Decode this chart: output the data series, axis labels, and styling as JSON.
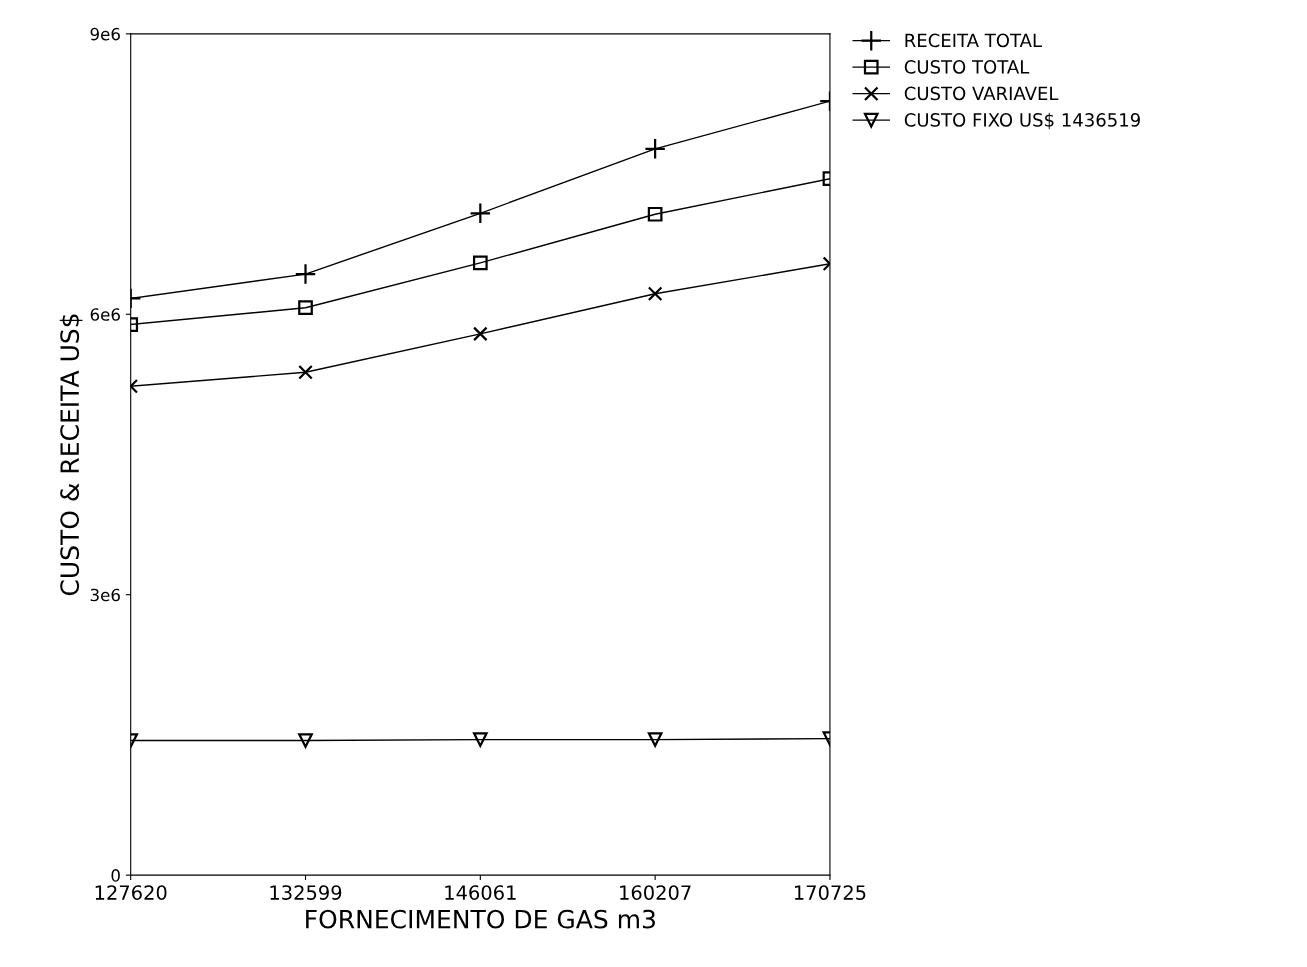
{
  "chart_data": {
    "type": "line",
    "xlabel": "FORNECIMENTO DE GAS m3",
    "ylabel": "CUSTO & RECEITA US$",
    "categories": [
      "127620",
      "132599",
      "146061",
      "160207",
      "170725"
    ],
    "series": [
      {
        "name": "RECEITA TOTAL",
        "color": "#000000",
        "marker": "plus",
        "values": [
          6170000,
          6430000,
          7080000,
          7770000,
          8280000
        ]
      },
      {
        "name": "CUSTO TOTAL",
        "color": "#000000",
        "marker": "square",
        "values": [
          5890000,
          6070000,
          6550000,
          7070000,
          7450000
        ]
      },
      {
        "name": "CUSTO VARIAVEL",
        "color": "#000000",
        "marker": "cross",
        "values": [
          5230000,
          5380000,
          5790000,
          6220000,
          6540000
        ]
      },
      {
        "name": "CUSTO FIXO US$ 1436519",
        "color": "#000000",
        "marker": "triangle",
        "values": [
          1440000,
          1440000,
          1450000,
          1450000,
          1460000
        ]
      }
    ],
    "ylim": [
      0,
      9000000
    ],
    "yticks": [
      {
        "value": 0,
        "label": "0"
      },
      {
        "value": 3000000,
        "label": "3e6"
      },
      {
        "value": 6000000,
        "label": "6e6"
      },
      {
        "value": 9000000,
        "label": "9e6"
      }
    ],
    "grid": false,
    "legend": "top right",
    "line_style": "solid"
  }
}
